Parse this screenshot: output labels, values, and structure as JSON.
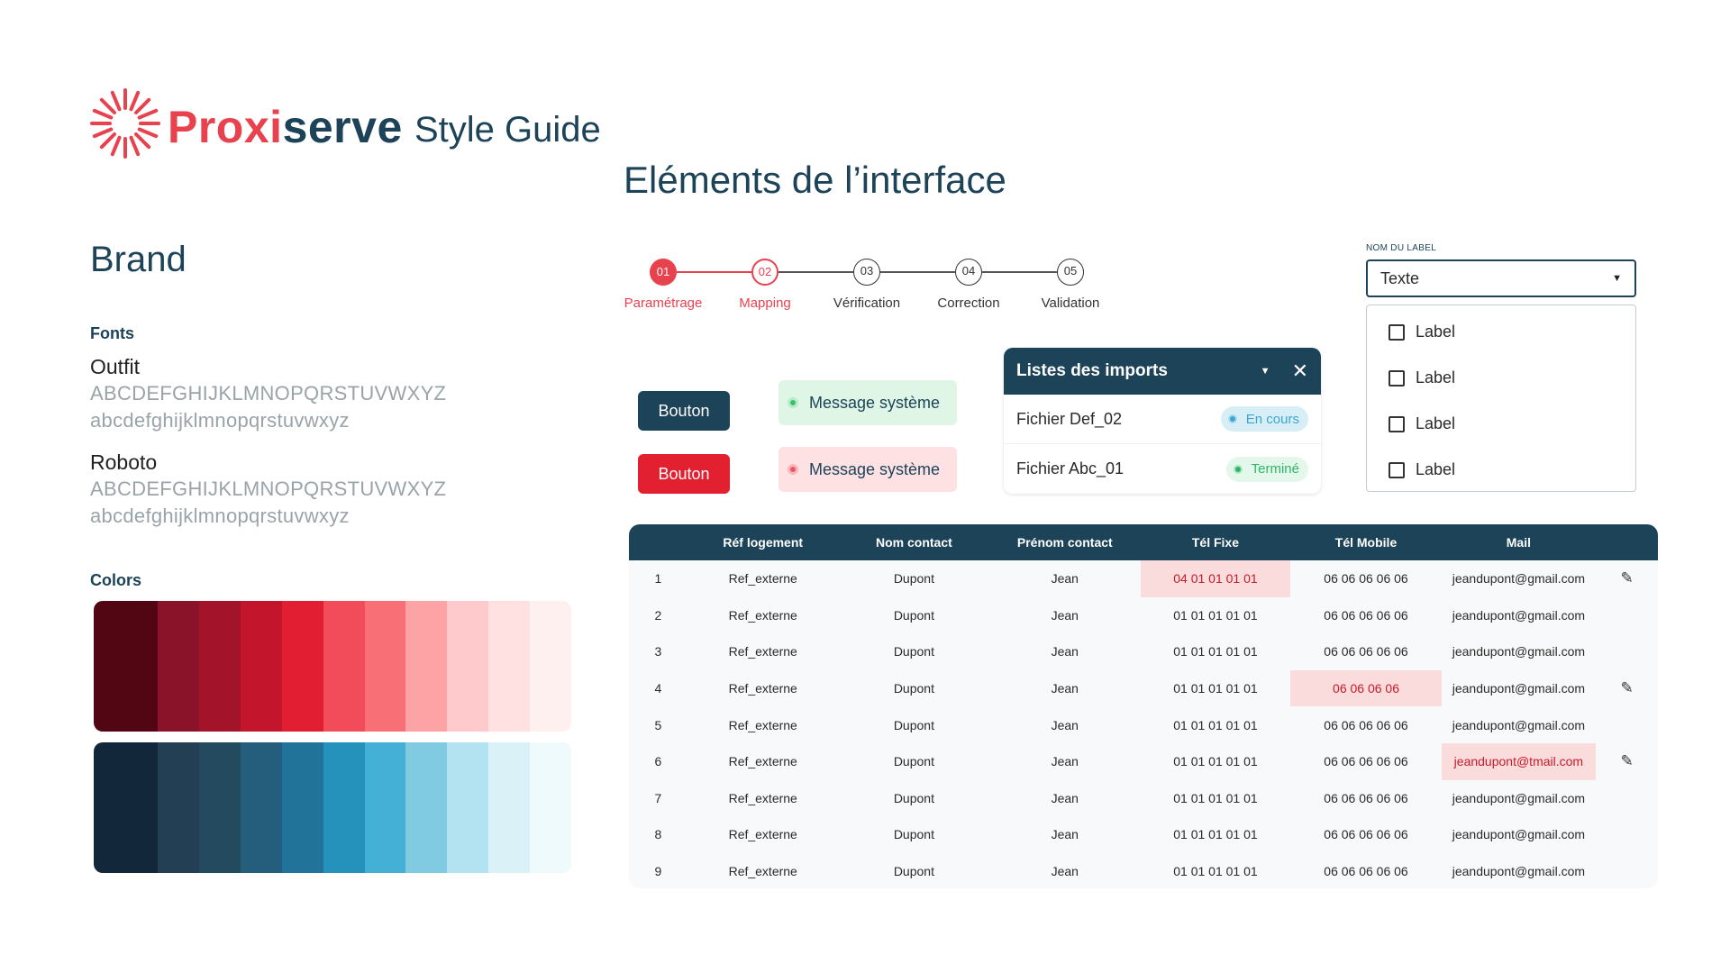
{
  "header": {
    "brand_part1": "Proxi",
    "brand_part2": "serve",
    "guide_title": "Style Guide",
    "section_title": "Eléments de l’interface",
    "logo_icon": "sunburst-logo-icon"
  },
  "brand": {
    "heading": "Brand",
    "fonts_heading": "Fonts",
    "fonts": [
      {
        "name": "Outfit",
        "upper": "ABCDEFGHIJKLMNOPQRSTUVWXYZ",
        "lower": "abcdefghijklmnopqrstuvwxyz"
      },
      {
        "name": "Roboto",
        "upper": "ABCDEFGHIJKLMNOPQRSTUVWXYZ",
        "lower": "abcdefghijklmnopqrstuvwxyz"
      }
    ],
    "colors_heading": "Colors",
    "palettes": [
      [
        "#520513",
        "#8a1329",
        "#a3132a",
        "#c3152c",
        "#e21e33",
        "#f24b5a",
        "#f87075",
        "#fda3a6",
        "#ffcacb",
        "#ffe1e1",
        "#fff0f0"
      ],
      [
        "#12283a",
        "#223f53",
        "#244a5f",
        "#245e7c",
        "#22739a",
        "#2592bb",
        "#44b0d5",
        "#80cae2",
        "#b3e2f0",
        "#daf1f7",
        "#eefafc"
      ]
    ]
  },
  "colors": {
    "primary_red": "#e8424f",
    "primary_dark": "#1d4358",
    "inactive": "#555555"
  },
  "stepper": {
    "steps": [
      {
        "num": "01",
        "label": "Paramétrage",
        "state": "active"
      },
      {
        "num": "02",
        "label": "Mapping",
        "state": "current"
      },
      {
        "num": "03",
        "label": "Vérification",
        "state": "todo"
      },
      {
        "num": "04",
        "label": "Correction",
        "state": "todo"
      },
      {
        "num": "05",
        "label": "Validation",
        "state": "todo"
      }
    ]
  },
  "buttons": {
    "primary_label": "Bouton",
    "danger_label": "Bouton"
  },
  "messages": {
    "success": "Message système",
    "error": "Message système"
  },
  "imports": {
    "title": "Listes des imports",
    "rows": [
      {
        "name": "Fichier Def_02",
        "status": "En cours"
      },
      {
        "name": "Fichier Abc_01",
        "status": "Terminé"
      }
    ]
  },
  "select": {
    "label": "NOM DU LABEL",
    "value": "Texte",
    "options": [
      "Label",
      "Label",
      "Label",
      "Label"
    ]
  },
  "table": {
    "headers": [
      "",
      "Réf logement",
      "Nom contact",
      "Prénom contact",
      "Tél Fixe",
      "Tél Mobile",
      "Mail",
      ""
    ],
    "rows": [
      {
        "n": "1",
        "ref": "Ref_externe",
        "nom": "Dupont",
        "prenom": "Jean",
        "fixe": "04 01 01 01 01",
        "mobile": "06 06 06 06 06",
        "mail": "jeandupont@gmail.com",
        "error": "fixe",
        "edit": true
      },
      {
        "n": "2",
        "ref": "Ref_externe",
        "nom": "Dupont",
        "prenom": "Jean",
        "fixe": "01 01 01 01 01",
        "mobile": "06 06 06 06 06",
        "mail": "jeandupont@gmail.com",
        "error": "",
        "edit": false
      },
      {
        "n": "3",
        "ref": "Ref_externe",
        "nom": "Dupont",
        "prenom": "Jean",
        "fixe": "01 01 01 01 01",
        "mobile": "06 06 06 06 06",
        "mail": "jeandupont@gmail.com",
        "error": "",
        "edit": false
      },
      {
        "n": "4",
        "ref": "Ref_externe",
        "nom": "Dupont",
        "prenom": "Jean",
        "fixe": "01 01 01 01 01",
        "mobile": "06 06 06 06",
        "mail": "jeandupont@gmail.com",
        "error": "mobile",
        "edit": true
      },
      {
        "n": "5",
        "ref": "Ref_externe",
        "nom": "Dupont",
        "prenom": "Jean",
        "fixe": "01 01 01 01 01",
        "mobile": "06 06 06 06 06",
        "mail": "jeandupont@gmail.com",
        "error": "",
        "edit": false
      },
      {
        "n": "6",
        "ref": "Ref_externe",
        "nom": "Dupont",
        "prenom": "Jean",
        "fixe": "01 01 01 01 01",
        "mobile": "06 06 06 06 06",
        "mail": "jeandupont@tmail.com",
        "error": "mail",
        "edit": true
      },
      {
        "n": "7",
        "ref": "Ref_externe",
        "nom": "Dupont",
        "prenom": "Jean",
        "fixe": "01 01 01 01 01",
        "mobile": "06 06 06 06 06",
        "mail": "jeandupont@gmail.com",
        "error": "",
        "edit": false
      },
      {
        "n": "8",
        "ref": "Ref_externe",
        "nom": "Dupont",
        "prenom": "Jean",
        "fixe": "01 01 01 01 01",
        "mobile": "06 06 06 06 06",
        "mail": "jeandupont@gmail.com",
        "error": "",
        "edit": false
      },
      {
        "n": "9",
        "ref": "Ref_externe",
        "nom": "Dupont",
        "prenom": "Jean",
        "fixe": "01 01 01 01 01",
        "mobile": "06 06 06 06 06",
        "mail": "jeandupont@gmail.com",
        "error": "",
        "edit": false
      }
    ]
  }
}
